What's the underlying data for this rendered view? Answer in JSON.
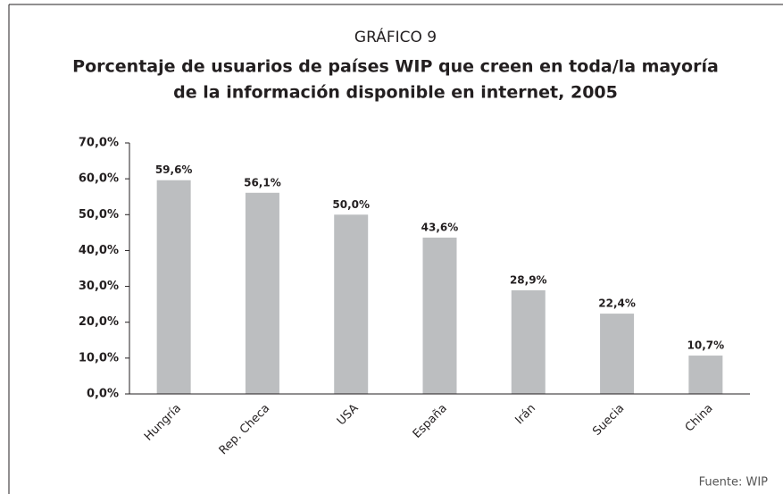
{
  "chart_data": {
    "type": "bar",
    "label": "GRÁFICO 9",
    "title": [
      "Porcentaje de usuarios de países WIP que creen en toda/la mayoría",
      "de la información disponible en internet, 2005"
    ],
    "categories": [
      "Hungría",
      "Rep. Checa",
      "USA",
      "España",
      "Irán",
      "Suecia",
      "China"
    ],
    "values": [
      59.6,
      56.1,
      50.0,
      43.6,
      28.9,
      22.4,
      10.7
    ],
    "value_labels": [
      "59,6%",
      "56,1%",
      "50,0%",
      "43,6%",
      "28,9%",
      "22,4%",
      "10,7%"
    ],
    "color": "#bcbec0",
    "ylim": [
      0,
      70
    ],
    "yticks": [
      {
        "value": 0,
        "label": "0,0%"
      },
      {
        "value": 10,
        "label": "10,0%"
      },
      {
        "value": 20,
        "label": "20,0%"
      },
      {
        "value": 30,
        "label": "30,0%"
      },
      {
        "value": 40,
        "label": "40,0%"
      },
      {
        "value": 50,
        "label": "50,0%"
      },
      {
        "value": 60,
        "label": "60,0%"
      },
      {
        "value": 70,
        "label": "70,0%"
      }
    ],
    "grid": false,
    "source": "Fuente: WIP"
  }
}
